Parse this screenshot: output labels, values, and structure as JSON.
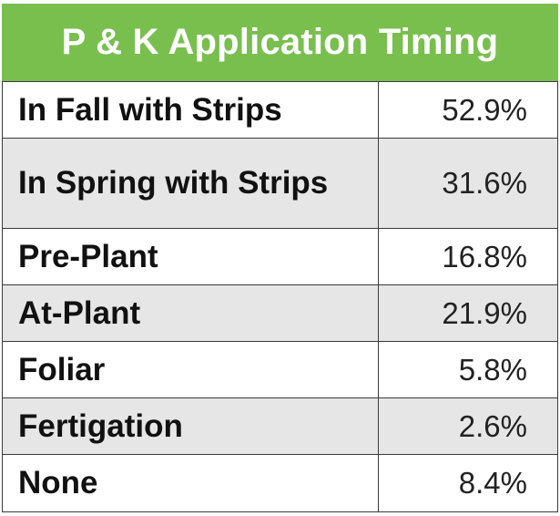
{
  "chart_data": {
    "type": "table",
    "title": "P & K Application Timing",
    "rows": [
      {
        "label": "In Fall with Strips",
        "value": "52.9%"
      },
      {
        "label": "In Spring with Strips",
        "value": "31.6%"
      },
      {
        "label": "Pre-Plant",
        "value": "16.8%"
      },
      {
        "label": "At-Plant",
        "value": "21.9%"
      },
      {
        "label": "Foliar",
        "value": "5.8%"
      },
      {
        "label": "Fertigation",
        "value": "2.6%"
      },
      {
        "label": "None",
        "value": "8.4%"
      }
    ]
  },
  "colors": {
    "header_background": "#78bf4e",
    "header_text": "#ffffff",
    "shaded_row": "#e6e6e6",
    "border": "#3a3a3a"
  }
}
